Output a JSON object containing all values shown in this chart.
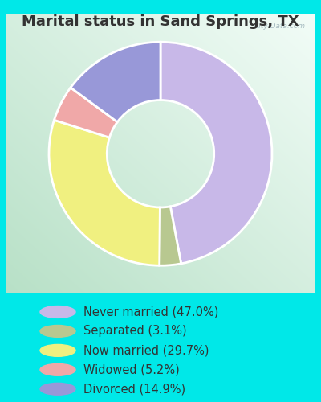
{
  "title": "Marital status in Sand Springs, TX",
  "slices": [
    47.0,
    3.1,
    29.7,
    5.2,
    14.9
  ],
  "labels": [
    "Never married (47.0%)",
    "Separated (3.1%)",
    "Now married (29.7%)",
    "Widowed (5.2%)",
    "Divorced (14.9%)"
  ],
  "colors": [
    "#c8b8e8",
    "#b8c890",
    "#f0f080",
    "#f0a8a8",
    "#9898d8"
  ],
  "background_color": "#00e8e8",
  "title_fontsize": 13,
  "title_color": "#333333",
  "watermark": "City-Data.com",
  "legend_fontsize": 10.5,
  "donut_width": 0.52,
  "startangle": 90
}
